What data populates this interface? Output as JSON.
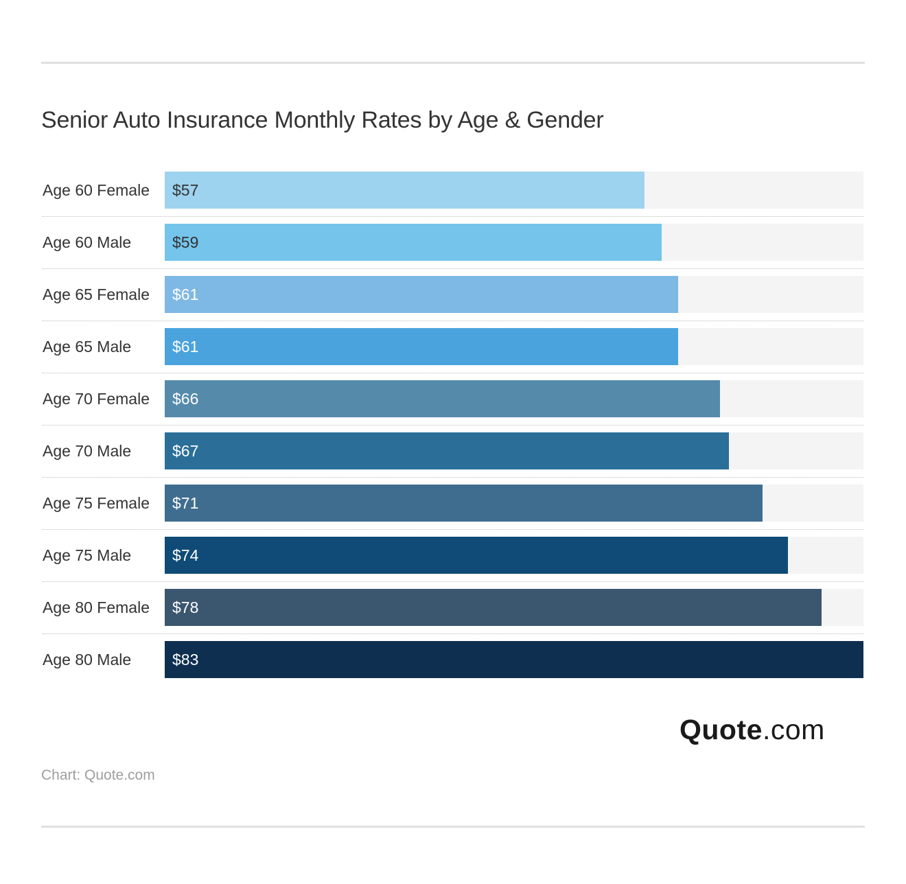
{
  "title": "Senior Auto Insurance Monthly Rates by Age & Gender",
  "source": "Chart: Quote.com",
  "logo": {
    "name": "Quote",
    "suffix": ".com"
  },
  "chart_data": {
    "type": "bar",
    "orientation": "horizontal",
    "title": "Senior Auto Insurance Monthly Rates by Age & Gender",
    "xlabel": "",
    "ylabel": "",
    "xlim": [
      0,
      83
    ],
    "grid": false,
    "categories": [
      "Age 60 Female",
      "Age 60 Male",
      "Age 65 Female",
      "Age 65 Male",
      "Age 70 Female",
      "Age 70 Male",
      "Age 75 Female",
      "Age 75 Male",
      "Age 80 Female",
      "Age 80 Male"
    ],
    "values": [
      57,
      59,
      61,
      61,
      66,
      67,
      71,
      74,
      78,
      83
    ],
    "value_labels": [
      "$57",
      "$59",
      "$61",
      "$61",
      "$66",
      "$67",
      "$71",
      "$74",
      "$78",
      "$83"
    ],
    "colors": [
      "#9dd3ef",
      "#74c4ec",
      "#7eb8e4",
      "#4aa3dd",
      "#558aab",
      "#2b6f99",
      "#3f6d8f",
      "#0f4b76",
      "#3b566f",
      "#0e2f50"
    ],
    "value_label_colors": [
      "#333333",
      "#333333",
      "#ffffff",
      "#ffffff",
      "#ffffff",
      "#ffffff",
      "#ffffff",
      "#ffffff",
      "#ffffff",
      "#ffffff"
    ],
    "track_color": "#f4f4f4"
  }
}
